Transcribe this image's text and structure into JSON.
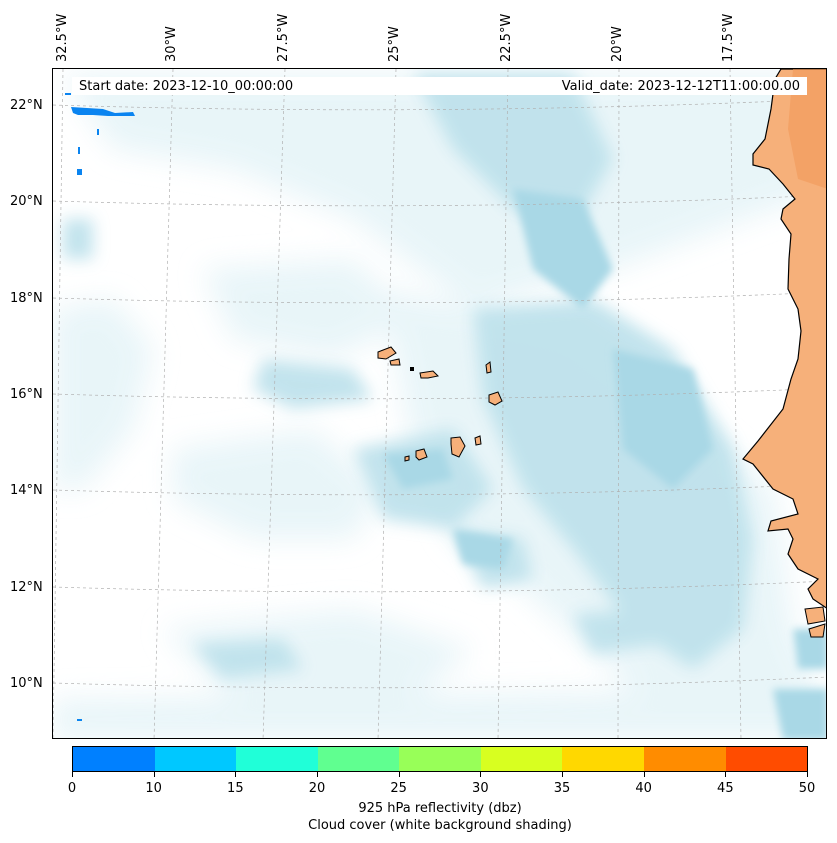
{
  "map": {
    "start_date": "Start date: 2023-12-10_00:00:00",
    "valid_date": "Valid_date: 2023-12-12T11:00:00.00",
    "longitude_labels": [
      "32.5°W",
      "30°W",
      "27.5°W",
      "25°W",
      "22.5°W",
      "20°W",
      "17.5°W"
    ],
    "latitude_labels": [
      "22°N",
      "20°N",
      "18°N",
      "16°N",
      "14°N",
      "12°N",
      "10°N"
    ],
    "colors": {
      "cloud_light": "#e6f4f8",
      "cloud_medium": "#bfe2ec",
      "cloud_dense": "#a9d8e6",
      "land": "#f6b07a",
      "land_dark": "#f29a58",
      "coastline": "#000000",
      "reflectivity_spot": "#0a84f0",
      "gridline": "#b0b0b0"
    }
  },
  "colorbar": {
    "caption_line1": "925 hPa reflectivity (dbz)",
    "caption_line2": "Cloud cover (white background shading)",
    "ticks": [
      "0",
      "10",
      "15",
      "20",
      "25",
      "30",
      "35",
      "40",
      "45",
      "50"
    ],
    "colors": [
      "#0080ff",
      "#00c8ff",
      "#20ffd8",
      "#60ff90",
      "#98ff58",
      "#d8ff20",
      "#ffd800",
      "#ff8c00",
      "#ff4c00"
    ]
  }
}
